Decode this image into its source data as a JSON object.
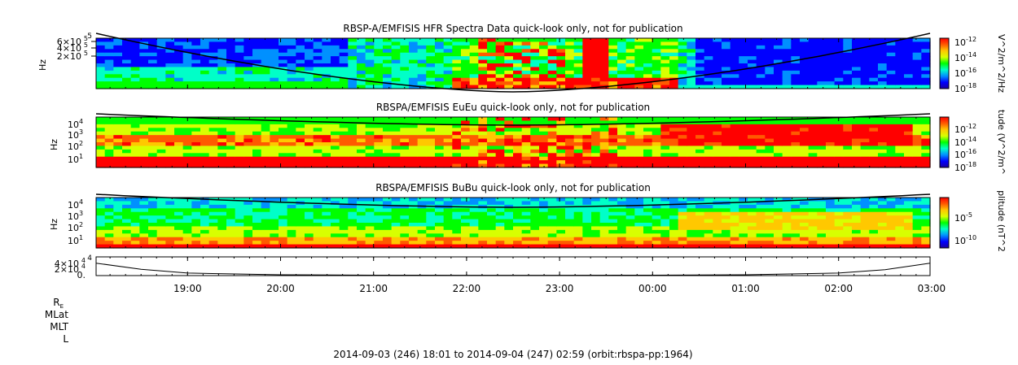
{
  "colors": {
    "colormap": [
      "#1a00a0",
      "#0000ff",
      "#0090ff",
      "#00ffc8",
      "#00ff00",
      "#d8ff00",
      "#ffc800",
      "#ff5a00",
      "#ff0000"
    ],
    "axis": "#000000",
    "curve": "#000000"
  },
  "time_axis": {
    "labels": [
      "19:00",
      "20:00",
      "21:00",
      "22:00",
      "23:00",
      "00:00",
      "01:00",
      "02:00",
      "03:00"
    ],
    "ephemeris_labels": [
      "R",
      "MLat",
      "MLT",
      "L"
    ],
    "subscript_E": "E",
    "footer": "2014-09-03 (246) 18:01 to 2014-09-04 (247) 02:59 (orbit:rbspa-pp:1964)"
  },
  "chart_data": [
    {
      "type": "heatmap",
      "title": "RBSP-A/EMFISIS  HFR Spectra Data quick-look only, not for publication",
      "ylabel": "Hz",
      "yticks": [
        "6×10",
        "4×10",
        "2×10"
      ],
      "ytick_exponent": "5",
      "ytick_top": "5",
      "zlabel": "V^2/m^2/Hz",
      "zticks": [
        "10",
        "10",
        "10",
        "10"
      ],
      "zexps": [
        "-12",
        "-14",
        "-16",
        "-18"
      ],
      "x_start": "18:01",
      "x_end": "02:59"
    },
    {
      "type": "heatmap",
      "title": "RBSPA/EMFISIS  EuEu quick-look only, not for publication",
      "ylabel": "Hz",
      "yticks": [
        "10",
        "10",
        "10",
        "10"
      ],
      "yexps": [
        "4",
        "3",
        "2",
        "1"
      ],
      "zlabel": "tude (V^2/m^",
      "zticks": [
        "10",
        "10",
        "10",
        "10"
      ],
      "zexps": [
        "-12",
        "-14",
        "-16",
        "-18"
      ]
    },
    {
      "type": "heatmap",
      "title": "RBSPA/EMFISIS  BuBu quick-look only, not for publication",
      "ylabel": "Hz",
      "yticks": [
        "10",
        "10",
        "10",
        "10"
      ],
      "yexps": [
        "4",
        "3",
        "2",
        "1"
      ],
      "zlabel": "plitude (nT^2",
      "zticks": [
        "10",
        "10"
      ],
      "zexps": [
        "-5",
        "-10"
      ]
    },
    {
      "type": "line",
      "title": "",
      "yticks": [
        "4×10",
        "2×10",
        "0."
      ],
      "ytick_exponent": "4",
      "ytick_top": "4",
      "x": [
        "18:01",
        "18:30",
        "19:00",
        "20:00",
        "21:00",
        "22:00",
        "22:30",
        "23:00",
        "00:00",
        "01:00",
        "02:00",
        "02:30",
        "02:59"
      ],
      "y": [
        30000,
        15000,
        6000,
        2000,
        1000,
        800,
        800,
        800,
        1000,
        2000,
        6000,
        14000,
        30000
      ]
    }
  ]
}
